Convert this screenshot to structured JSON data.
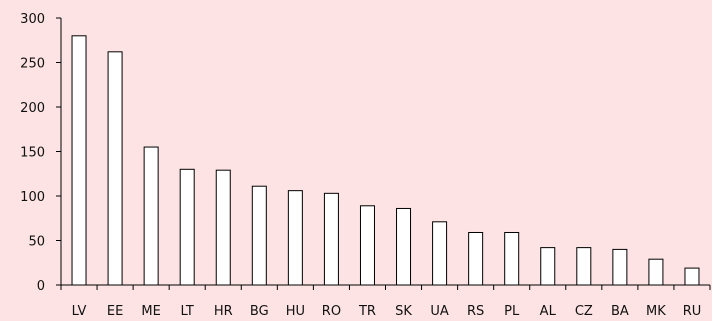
{
  "chart_data": {
    "type": "bar",
    "title": "",
    "xlabel": "",
    "ylabel": "",
    "categories": [
      "LV",
      "EE",
      "ME",
      "LT",
      "HR",
      "BG",
      "HU",
      "RO",
      "TR",
      "SK",
      "UA",
      "RS",
      "PL",
      "AL",
      "CZ",
      "BA",
      "MK",
      "RU"
    ],
    "values": [
      280,
      262,
      155,
      130,
      129,
      111,
      106,
      103,
      89,
      86,
      71,
      59,
      59,
      42,
      42,
      40,
      29,
      19
    ],
    "ylim": [
      0,
      300
    ],
    "yticks": [
      0,
      50,
      100,
      150,
      200,
      250,
      300
    ],
    "grid": false,
    "legend": "none",
    "colors": {
      "background": "#fde3e3",
      "bar_fill": "#ffffff",
      "bar_stroke": "#000000",
      "axis": "#000000"
    }
  }
}
